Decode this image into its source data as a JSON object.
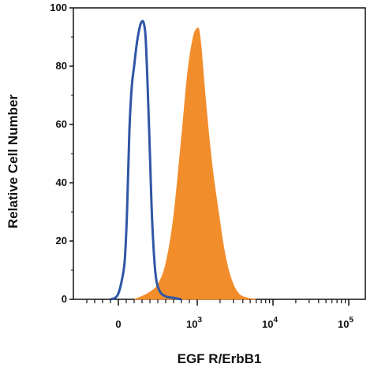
{
  "chart_data": {
    "type": "area",
    "title": "",
    "xlabel": "EGF R/ErbB1",
    "ylabel": "Relative Cell Number",
    "x_scale": "biexponential",
    "y_ticks": [
      "0",
      "20",
      "40",
      "60",
      "80",
      "100"
    ],
    "ylim": [
      0,
      100
    ],
    "x_ticks": [
      {
        "base": "0",
        "exp": ""
      },
      {
        "base": "10",
        "exp": "3"
      },
      {
        "base": "10",
        "exp": "4"
      },
      {
        "base": "10",
        "exp": "5"
      }
    ],
    "grid": false,
    "legend": "none",
    "series": [
      {
        "style": "outline",
        "color": "#2f56a6",
        "x": [
          -100,
          -40,
          0,
          40,
          80,
          110,
          140,
          170,
          200,
          230,
          260,
          290,
          320,
          345,
          370,
          400,
          430,
          470,
          520,
          600,
          700,
          800
        ],
        "values": [
          0,
          0.5,
          2,
          6,
          13,
          30,
          58,
          73,
          80,
          87,
          92,
          95,
          95,
          90,
          74,
          50,
          26,
          9,
          3,
          1,
          0.5,
          0
        ]
      },
      {
        "style": "filled",
        "color": "#f28d2c",
        "x": [
          200,
          300,
          400,
          500,
          600,
          700,
          800,
          880,
          950,
          1000,
          1060,
          1130,
          1250,
          1400,
          1600,
          1900,
          2300,
          2800,
          3500,
          4500,
          6000
        ],
        "values": [
          0,
          1,
          2.5,
          5,
          12,
          28,
          55,
          78,
          90,
          93,
          92,
          86,
          72,
          58,
          44,
          30,
          16,
          7,
          2,
          0.5,
          0
        ]
      }
    ]
  }
}
